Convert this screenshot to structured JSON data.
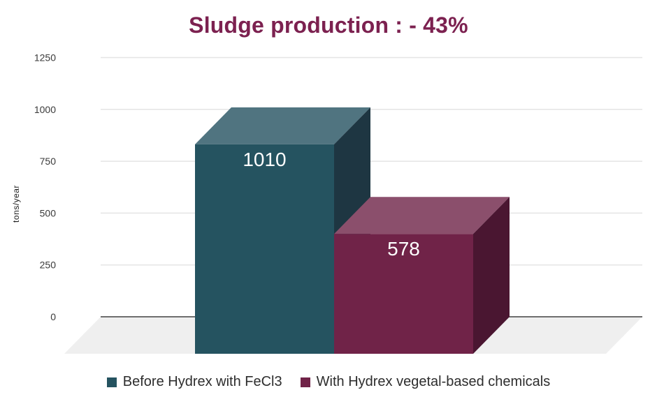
{
  "page": {
    "background": "#ffffff"
  },
  "chart_data": {
    "type": "bar",
    "variant": "3d-column",
    "title": "Sludge production : - 43%",
    "title_color": "#7c2150",
    "xlabel": "",
    "ylabel": "tons/year",
    "ylim": [
      0,
      1250
    ],
    "yticks": [
      0,
      250,
      500,
      750,
      1000,
      1250
    ],
    "grid": true,
    "gridline_color": "#e4e4e4",
    "axis_line_color": "#6e6e6e",
    "floor_color": "#efefef",
    "tick_label_color": "#3a3a3a",
    "value_label_color": "#ffffff",
    "legend_position": "bottom",
    "categories": [
      "Before Hydrex with FeCl3",
      "With Hydrex vegetal-based chemicals"
    ],
    "series": [
      {
        "name": "Before Hydrex with FeCl3",
        "value": 1010,
        "label": "1010",
        "color": "#255360",
        "color_top": "#507480",
        "color_side": "#1e3642"
      },
      {
        "name": "With Hydrex vegetal-based chemicals",
        "value": 578,
        "label": "578",
        "color": "#702348",
        "color_top": "#8b4f6c",
        "color_side": "#4a1631"
      }
    ]
  }
}
